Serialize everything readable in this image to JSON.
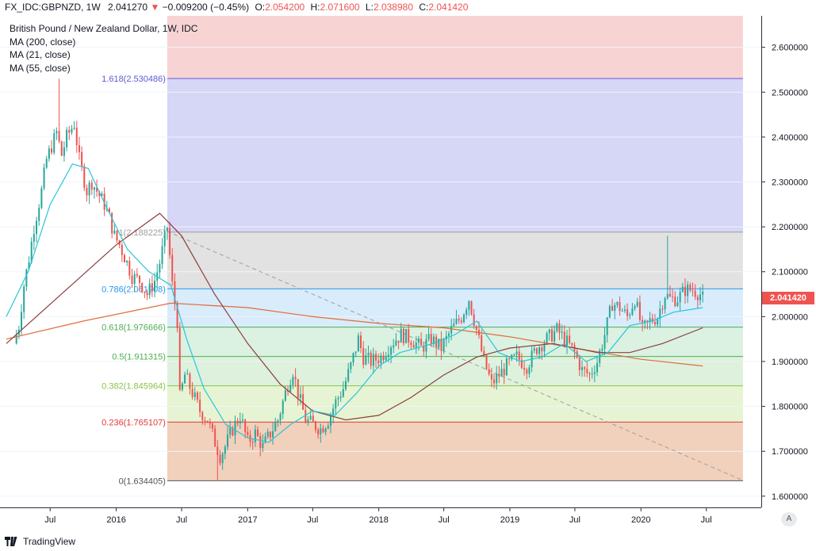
{
  "header": {
    "symbol": "FX_IDC:GBPNZD, 1W",
    "last": "2.041270",
    "change_arrow": "▼",
    "change": "−0.009200 (−0.45%)",
    "open_label": "O:",
    "open": "2.054200",
    "high_label": "H:",
    "high": "2.071600",
    "low_label": "L:",
    "low": "2.038980",
    "close_label": "C:",
    "close": "2.041420"
  },
  "legend": {
    "title": "British Pound / New Zealand Dollar, 1W, IDC",
    "ma200": "MA (200, close)",
    "ma21": "MA (21, close)",
    "ma55": "MA (55, close)"
  },
  "last_price_tag": "2.041420",
  "auto_button": "A",
  "footer": {
    "brand": "TradingView"
  },
  "colors": {
    "up": "#26a69a",
    "down": "#ef5350",
    "ma21": "#26c6da",
    "ma55": "#8d3f3f",
    "ma200": "#e06c3a"
  },
  "chart_data": {
    "type": "candlestick",
    "title": "British Pound / New Zealand Dollar, 1W, IDC",
    "ylim": [
      1.575,
      2.67
    ],
    "y_ticks": [
      "1.600000",
      "1.700000",
      "1.800000",
      "1.900000",
      "2.000000",
      "2.100000",
      "2.200000",
      "2.300000",
      "2.400000",
      "2.500000",
      "2.600000"
    ],
    "x_ticks": [
      "Jul",
      "2016",
      "Jul",
      "2017",
      "Jul",
      "2018",
      "Jul",
      "2019",
      "Jul",
      "2020",
      "Jul"
    ],
    "fibonacci": [
      {
        "ratio": "1.618",
        "value": 2.530486,
        "label": "1.618(2.530486)",
        "color": "#5b5bd6"
      },
      {
        "ratio": "1",
        "value": 2.188225,
        "label": "1(2.188225)",
        "color": "#9e9e9e"
      },
      {
        "ratio": "0.786",
        "value": 2.061908,
        "label": "0.786(2.061908)",
        "color": "#2196f3"
      },
      {
        "ratio": "0.618",
        "value": 1.976666,
        "label": "0.618(1.976666)",
        "color": "#4caf50"
      },
      {
        "ratio": "0.5",
        "value": 1.911315,
        "label": "0.5(1.911315)",
        "color": "#4caf50"
      },
      {
        "ratio": "0.382",
        "value": 1.845964,
        "label": "0.382(1.845964)",
        "color": "#8bc34a"
      },
      {
        "ratio": "0.236",
        "value": 1.765107,
        "label": "0.236(1.765107)",
        "color": "#e53935"
      },
      {
        "ratio": "0",
        "value": 1.634405,
        "label": "0(1.634405)",
        "color": "#555555"
      }
    ],
    "trend_line": {
      "from_date": "2016-05-22",
      "from": 2.19,
      "to_date": "2020-10-11",
      "to": 1.635
    },
    "price_path": [
      [
        "2015-03-22",
        1.94
      ],
      [
        "2015-04-05",
        1.98
      ],
      [
        "2015-04-19",
        2.07
      ],
      [
        "2015-05-03",
        2.13
      ],
      [
        "2015-05-17",
        2.2
      ],
      [
        "2015-06-07",
        2.28
      ],
      [
        "2015-06-21",
        2.35
      ],
      [
        "2015-07-05",
        2.38
      ],
      [
        "2015-07-19",
        2.41
      ],
      [
        "2015-08-02",
        2.36
      ],
      [
        "2015-08-16",
        2.4
      ],
      [
        "2015-09-06",
        2.43
      ],
      [
        "2015-09-20",
        2.35
      ],
      [
        "2015-10-11",
        2.28
      ],
      [
        "2015-10-25",
        2.3
      ],
      [
        "2015-11-15",
        2.27
      ],
      [
        "2015-11-29",
        2.25
      ],
      [
        "2015-12-13",
        2.22
      ],
      [
        "2015-12-27",
        2.18
      ],
      [
        "2016-01-10",
        2.16
      ],
      [
        "2016-01-31",
        2.12
      ],
      [
        "2016-02-14",
        2.09
      ],
      [
        "2016-03-06",
        2.08
      ],
      [
        "2016-03-27",
        2.05
      ],
      [
        "2016-04-17",
        2.08
      ],
      [
        "2016-05-01",
        2.12
      ],
      [
        "2016-05-22",
        2.2
      ],
      [
        "2016-06-05",
        2.07
      ],
      [
        "2016-06-19",
        1.99
      ],
      [
        "2016-06-26",
        1.82
      ],
      [
        "2016-07-10",
        1.87
      ],
      [
        "2016-07-31",
        1.83
      ],
      [
        "2016-08-21",
        1.79
      ],
      [
        "2016-09-11",
        1.77
      ],
      [
        "2016-10-02",
        1.72
      ],
      [
        "2016-10-16",
        1.69
      ],
      [
        "2016-10-30",
        1.71
      ],
      [
        "2016-11-20",
        1.75
      ],
      [
        "2016-12-11",
        1.78
      ],
      [
        "2017-01-01",
        1.72
      ],
      [
        "2017-01-22",
        1.74
      ],
      [
        "2017-02-12",
        1.71
      ],
      [
        "2017-03-05",
        1.74
      ],
      [
        "2017-03-26",
        1.77
      ],
      [
        "2017-04-23",
        1.85
      ],
      [
        "2017-05-07",
        1.88
      ],
      [
        "2017-05-21",
        1.83
      ],
      [
        "2017-06-11",
        1.77
      ],
      [
        "2017-07-02",
        1.76
      ],
      [
        "2017-07-23",
        1.75
      ],
      [
        "2017-08-13",
        1.77
      ],
      [
        "2017-09-03",
        1.81
      ],
      [
        "2017-09-24",
        1.84
      ],
      [
        "2017-10-15",
        1.89
      ],
      [
        "2017-11-05",
        1.95
      ],
      [
        "2017-11-19",
        1.91
      ],
      [
        "2017-12-10",
        1.9
      ],
      [
        "2018-01-07",
        1.91
      ],
      [
        "2018-02-04",
        1.94
      ],
      [
        "2018-03-04",
        1.96
      ],
      [
        "2018-04-01",
        1.95
      ],
      [
        "2018-04-29",
        1.93
      ],
      [
        "2018-05-27",
        1.95
      ],
      [
        "2018-06-24",
        1.93
      ],
      [
        "2018-07-22",
        1.97
      ],
      [
        "2018-08-19",
        2.0
      ],
      [
        "2018-09-09",
        2.04
      ],
      [
        "2018-09-30",
        1.97
      ],
      [
        "2018-10-21",
        1.9
      ],
      [
        "2018-11-11",
        1.85
      ],
      [
        "2018-12-02",
        1.87
      ],
      [
        "2018-12-23",
        1.89
      ],
      [
        "2019-01-20",
        1.91
      ],
      [
        "2019-02-17",
        1.89
      ],
      [
        "2019-03-17",
        1.93
      ],
      [
        "2019-04-14",
        1.95
      ],
      [
        "2019-05-12",
        1.97
      ],
      [
        "2019-06-02",
        1.95
      ],
      [
        "2019-06-30",
        1.92
      ],
      [
        "2019-07-21",
        1.88
      ],
      [
        "2019-08-11",
        1.87
      ],
      [
        "2019-09-01",
        1.9
      ],
      [
        "2019-09-22",
        1.96
      ],
      [
        "2019-10-13",
        2.03
      ],
      [
        "2019-11-03",
        2.02
      ],
      [
        "2019-11-24",
        2.0
      ],
      [
        "2019-12-15",
        2.04
      ],
      [
        "2020-01-05",
        1.97
      ],
      [
        "2020-01-26",
        1.99
      ],
      [
        "2020-02-16",
        2.0
      ],
      [
        "2020-03-08",
        2.05
      ],
      [
        "2020-03-22",
        2.04
      ],
      [
        "2020-04-12",
        2.04
      ],
      [
        "2020-05-03",
        2.06
      ],
      [
        "2020-05-24",
        2.06
      ],
      [
        "2020-06-14",
        2.05
      ],
      [
        "2020-06-21",
        2.04
      ]
    ],
    "extremes": [
      {
        "date": "2015-07-26",
        "high": 2.53
      },
      {
        "date": "2016-10-09",
        "low": 1.634
      },
      {
        "date": "2020-03-15",
        "high": 2.18
      }
    ],
    "ma21": [
      [
        "2015-03-01",
        2.0
      ],
      [
        "2015-05-01",
        2.1
      ],
      [
        "2015-07-01",
        2.25
      ],
      [
        "2015-09-01",
        2.34
      ],
      [
        "2015-10-15",
        2.33
      ],
      [
        "2015-12-01",
        2.25
      ],
      [
        "2016-02-01",
        2.15
      ],
      [
        "2016-04-01",
        2.1
      ],
      [
        "2016-06-01",
        2.07
      ],
      [
        "2016-07-15",
        1.95
      ],
      [
        "2016-09-01",
        1.84
      ],
      [
        "2016-11-01",
        1.76
      ],
      [
        "2017-01-01",
        1.73
      ],
      [
        "2017-03-01",
        1.72
      ],
      [
        "2017-05-01",
        1.76
      ],
      [
        "2017-07-01",
        1.79
      ],
      [
        "2017-09-01",
        1.78
      ],
      [
        "2017-11-01",
        1.83
      ],
      [
        "2018-01-01",
        1.89
      ],
      [
        "2018-03-01",
        1.92
      ],
      [
        "2018-06-01",
        1.94
      ],
      [
        "2018-08-01",
        1.96
      ],
      [
        "2018-10-01",
        1.99
      ],
      [
        "2018-12-01",
        1.92
      ],
      [
        "2019-02-01",
        1.9
      ],
      [
        "2019-04-01",
        1.91
      ],
      [
        "2019-06-01",
        1.94
      ],
      [
        "2019-08-01",
        1.9
      ],
      [
        "2019-10-01",
        1.92
      ],
      [
        "2019-12-01",
        1.98
      ],
      [
        "2020-02-01",
        1.99
      ],
      [
        "2020-04-01",
        2.01
      ],
      [
        "2020-06-21",
        2.02
      ]
    ],
    "ma55": [
      [
        "2015-03-01",
        1.94
      ],
      [
        "2015-08-01",
        2.05
      ],
      [
        "2016-01-01",
        2.16
      ],
      [
        "2016-05-01",
        2.23
      ],
      [
        "2016-07-01",
        2.18
      ],
      [
        "2016-10-01",
        2.05
      ],
      [
        "2017-01-01",
        1.94
      ],
      [
        "2017-04-01",
        1.85
      ],
      [
        "2017-07-01",
        1.79
      ],
      [
        "2017-10-01",
        1.77
      ],
      [
        "2018-01-01",
        1.78
      ],
      [
        "2018-04-01",
        1.82
      ],
      [
        "2018-07-01",
        1.87
      ],
      [
        "2018-10-01",
        1.91
      ],
      [
        "2019-01-01",
        1.93
      ],
      [
        "2019-05-01",
        1.94
      ],
      [
        "2019-09-01",
        1.92
      ],
      [
        "2019-12-01",
        1.92
      ],
      [
        "2020-03-01",
        1.94
      ],
      [
        "2020-06-21",
        1.975
      ]
    ],
    "ma200": [
      [
        "2015-03-01",
        1.95
      ],
      [
        "2015-10-01",
        1.99
      ],
      [
        "2016-06-01",
        2.03
      ],
      [
        "2017-01-01",
        2.02
      ],
      [
        "2017-07-01",
        2.0
      ],
      [
        "2018-01-01",
        1.985
      ],
      [
        "2018-07-01",
        1.975
      ],
      [
        "2019-01-01",
        1.955
      ],
      [
        "2019-07-01",
        1.93
      ],
      [
        "2020-01-01",
        1.905
      ],
      [
        "2020-06-21",
        1.89
      ]
    ]
  }
}
